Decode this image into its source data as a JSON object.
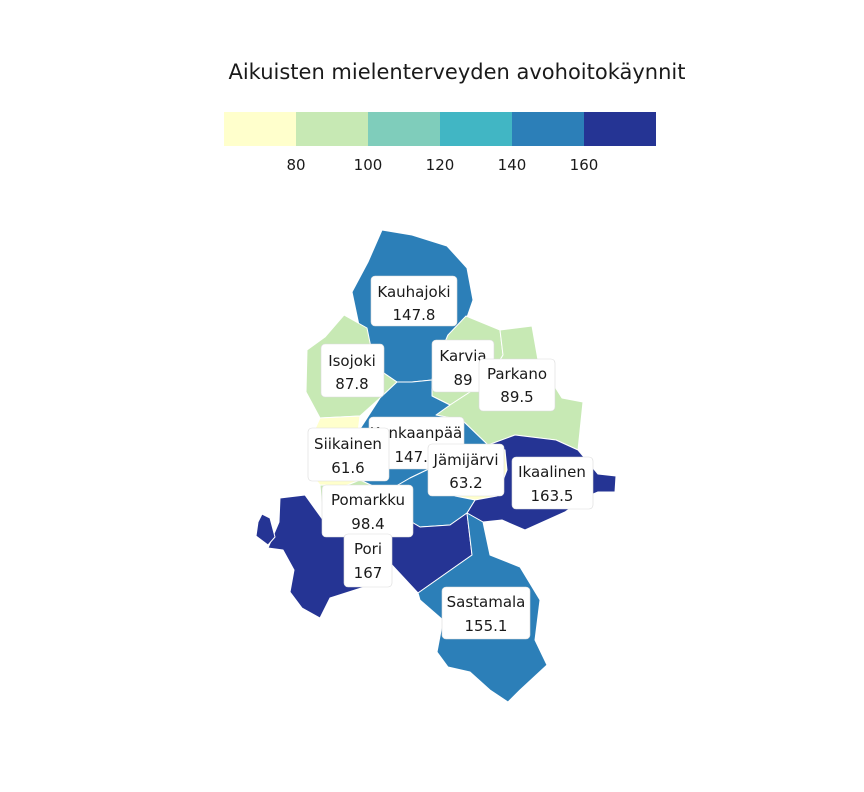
{
  "title": "Aikuisten mielenterveyden avohoitokäynnit",
  "legend": {
    "bins": [
      {
        "color": "#ffffcc"
      },
      {
        "color": "#c7e9b4"
      },
      {
        "color": "#7fcdbb"
      },
      {
        "color": "#41b6c4"
      },
      {
        "color": "#2c7fb8"
      },
      {
        "color": "#253494"
      }
    ],
    "ticks": [
      "80",
      "100",
      "120",
      "140",
      "160"
    ]
  },
  "regions": [
    {
      "id": "kauhajoki",
      "name": "Kauhajoki",
      "value": "147.8",
      "color": "#2c7fb8"
    },
    {
      "id": "isojoki",
      "name": "Isojoki",
      "value": "87.8",
      "color": "#c7e9b4"
    },
    {
      "id": "karvia",
      "name": "Karvia",
      "value": "89",
      "color": "#c7e9b4"
    },
    {
      "id": "parkano",
      "name": "Parkano",
      "value": "89.5",
      "color": "#c7e9b4"
    },
    {
      "id": "kankaanpaa",
      "name": "Kankaanpää",
      "value": "147.9",
      "color": "#2c7fb8"
    },
    {
      "id": "siikainen",
      "name": "Siikainen",
      "value": "61.6",
      "color": "#ffffcc"
    },
    {
      "id": "jamijarvi",
      "name": "Jämijärvi",
      "value": "63.2",
      "color": "#ffffcc"
    },
    {
      "id": "ikaalinen",
      "name": "Ikaalinen",
      "value": "163.5",
      "color": "#253494"
    },
    {
      "id": "pomarkku",
      "name": "Pomarkku",
      "value": "98.4",
      "color": "#c7e9b4"
    },
    {
      "id": "pori",
      "name": "Pori",
      "value": "167",
      "color": "#253494"
    },
    {
      "id": "sastamala",
      "name": "Sastamala",
      "value": "155.1",
      "color": "#2c7fb8"
    },
    {
      "id": "nakkila",
      "name": "",
      "value": "",
      "color": "#253494"
    },
    {
      "id": "lavia",
      "name": "",
      "value": "",
      "color": "#2c7fb8"
    }
  ]
}
